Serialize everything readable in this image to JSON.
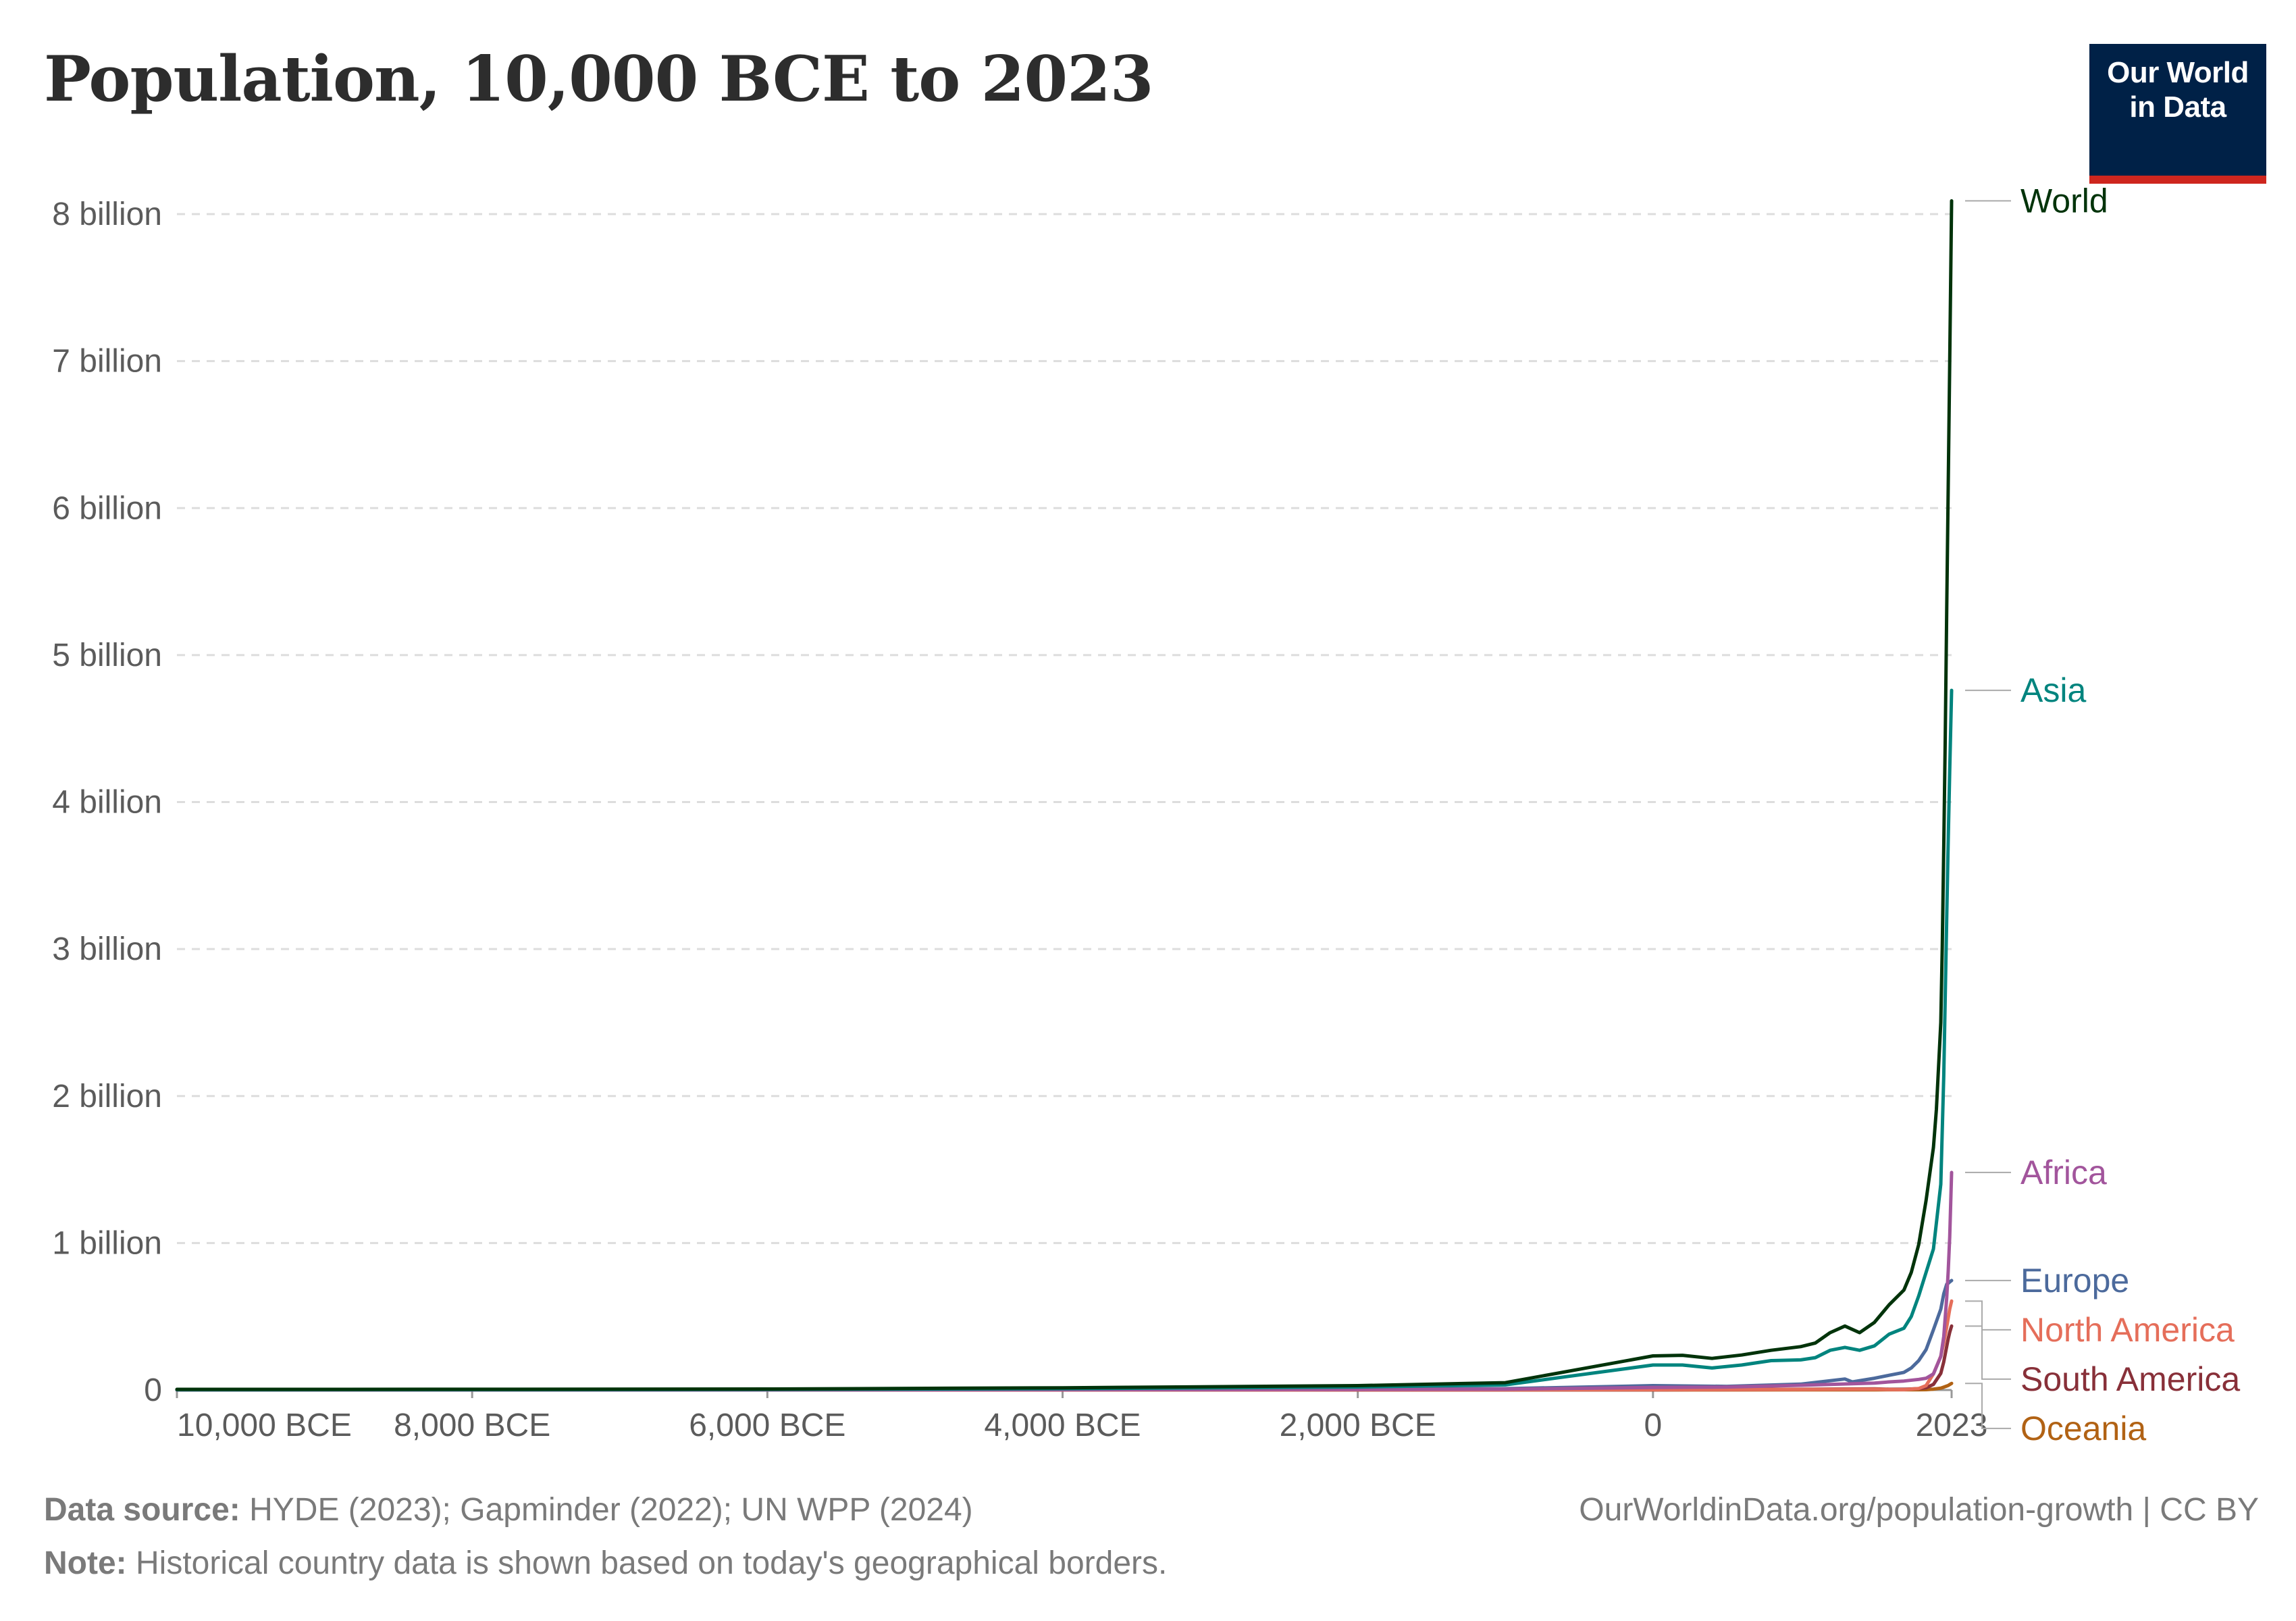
{
  "header": {
    "title": "Population, 10,000 BCE to 2023"
  },
  "logo": {
    "line1": "Our World",
    "line2": "in Data",
    "colors": {
      "background": "#002147",
      "accent": "#ce261e"
    }
  },
  "footer": {
    "source_label": "Data source:",
    "source_text": "HYDE (2023); Gapminder (2022); UN WPP (2024)",
    "url": "OurWorldinData.org/population-growth | CC BY",
    "note_label": "Note:",
    "note_text": "Historical country data is shown based on today's geographical borders."
  },
  "chart_data": {
    "type": "line",
    "xlim": [
      -10000,
      2023
    ],
    "ylim": [
      0,
      8000000000
    ],
    "grid": "horizontal dashed",
    "y_ticks": [
      {
        "value": 0,
        "label": "0"
      },
      {
        "value": 1000000000,
        "label": "1 billion"
      },
      {
        "value": 2000000000,
        "label": "2 billion"
      },
      {
        "value": 3000000000,
        "label": "3 billion"
      },
      {
        "value": 4000000000,
        "label": "4 billion"
      },
      {
        "value": 5000000000,
        "label": "5 billion"
      },
      {
        "value": 6000000000,
        "label": "6 billion"
      },
      {
        "value": 7000000000,
        "label": "7 billion"
      },
      {
        "value": 8000000000,
        "label": "8 billion"
      }
    ],
    "x_ticks": [
      {
        "value": -10000,
        "label": "10,000 BCE"
      },
      {
        "value": -8000,
        "label": "8,000 BCE"
      },
      {
        "value": -6000,
        "label": "6,000 BCE"
      },
      {
        "value": -4000,
        "label": "4,000 BCE"
      },
      {
        "value": -2000,
        "label": "2,000 BCE"
      },
      {
        "value": 0,
        "label": "0"
      },
      {
        "value": 2023,
        "label": "2023"
      }
    ],
    "series": [
      {
        "name": "World",
        "color": "#00330a",
        "points": [
          [
            -10000,
            4400000
          ],
          [
            -8000,
            5000000
          ],
          [
            -6000,
            7000000
          ],
          [
            -4000,
            15000000
          ],
          [
            -2000,
            30000000
          ],
          [
            -1000,
            50000000
          ],
          [
            0,
            232000000
          ],
          [
            200,
            236000000
          ],
          [
            400,
            215000000
          ],
          [
            600,
            238000000
          ],
          [
            800,
            270000000
          ],
          [
            1000,
            295000000
          ],
          [
            1100,
            320000000
          ],
          [
            1200,
            390000000
          ],
          [
            1300,
            435000000
          ],
          [
            1400,
            390000000
          ],
          [
            1500,
            460000000
          ],
          [
            1600,
            580000000
          ],
          [
            1700,
            680000000
          ],
          [
            1750,
            800000000
          ],
          [
            1800,
            990000000
          ],
          [
            1850,
            1290000000
          ],
          [
            1900,
            1650000000
          ],
          [
            1920,
            1910000000
          ],
          [
            1950,
            2500000000
          ],
          [
            1960,
            3020000000
          ],
          [
            1970,
            3700000000
          ],
          [
            1980,
            4440000000
          ],
          [
            1990,
            5320000000
          ],
          [
            2000,
            6150000000
          ],
          [
            2010,
            6990000000
          ],
          [
            2023,
            8090000000
          ]
        ]
      },
      {
        "name": "Asia",
        "color": "#00847e",
        "points": [
          [
            -10000,
            2000000
          ],
          [
            -8000,
            2500000
          ],
          [
            -6000,
            4000000
          ],
          [
            -4000,
            9000000
          ],
          [
            -2000,
            20000000
          ],
          [
            -1000,
            35000000
          ],
          [
            0,
            170000000
          ],
          [
            200,
            170000000
          ],
          [
            400,
            150000000
          ],
          [
            600,
            170000000
          ],
          [
            800,
            200000000
          ],
          [
            1000,
            205000000
          ],
          [
            1100,
            220000000
          ],
          [
            1200,
            270000000
          ],
          [
            1300,
            290000000
          ],
          [
            1400,
            270000000
          ],
          [
            1500,
            300000000
          ],
          [
            1600,
            380000000
          ],
          [
            1700,
            420000000
          ],
          [
            1750,
            500000000
          ],
          [
            1800,
            640000000
          ],
          [
            1850,
            800000000
          ],
          [
            1900,
            960000000
          ],
          [
            1950,
            1400000000
          ],
          [
            1970,
            2140000000
          ],
          [
            1990,
            3220000000
          ],
          [
            2000,
            3740000000
          ],
          [
            2010,
            4210000000
          ],
          [
            2023,
            4760000000
          ]
        ]
      },
      {
        "name": "Africa",
        "color": "#a2559c",
        "points": [
          [
            -10000,
            500000
          ],
          [
            -6000,
            1000000
          ],
          [
            -4000,
            2000000
          ],
          [
            -2000,
            4000000
          ],
          [
            -1000,
            6000000
          ],
          [
            0,
            17000000
          ],
          [
            500,
            20000000
          ],
          [
            1000,
            32000000
          ],
          [
            1500,
            47000000
          ],
          [
            1600,
            55000000
          ],
          [
            1700,
            61000000
          ],
          [
            1800,
            72000000
          ],
          [
            1850,
            80000000
          ],
          [
            1900,
            110000000
          ],
          [
            1950,
            228000000
          ],
          [
            1970,
            365000000
          ],
          [
            1990,
            630000000
          ],
          [
            2000,
            810000000
          ],
          [
            2010,
            1040000000
          ],
          [
            2023,
            1480000000
          ]
        ]
      },
      {
        "name": "Europe",
        "color": "#4c6a9c",
        "points": [
          [
            -10000,
            600000
          ],
          [
            -6000,
            1000000
          ],
          [
            -4000,
            2500000
          ],
          [
            -2000,
            5000000
          ],
          [
            -1000,
            9000000
          ],
          [
            0,
            30000000
          ],
          [
            500,
            25000000
          ],
          [
            1000,
            40000000
          ],
          [
            1300,
            75000000
          ],
          [
            1350,
            55000000
          ],
          [
            1500,
            80000000
          ],
          [
            1600,
            100000000
          ],
          [
            1700,
            120000000
          ],
          [
            1750,
            150000000
          ],
          [
            1800,
            200000000
          ],
          [
            1850,
            275000000
          ],
          [
            1900,
            410000000
          ],
          [
            1950,
            550000000
          ],
          [
            1970,
            655000000
          ],
          [
            1990,
            720000000
          ],
          [
            2000,
            726000000
          ],
          [
            2010,
            735000000
          ],
          [
            2023,
            745000000
          ]
        ]
      },
      {
        "name": "North America",
        "color": "#e56e5a",
        "points": [
          [
            -10000,
            100000
          ],
          [
            -4000,
            500000
          ],
          [
            -2000,
            800000
          ],
          [
            0,
            2500000
          ],
          [
            1000,
            4000000
          ],
          [
            1500,
            5500000
          ],
          [
            1600,
            3000000
          ],
          [
            1700,
            2500000
          ],
          [
            1800,
            10000000
          ],
          [
            1850,
            30000000
          ],
          [
            1900,
            110000000
          ],
          [
            1950,
            230000000
          ],
          [
            1970,
            320000000
          ],
          [
            1990,
            430000000
          ],
          [
            2000,
            490000000
          ],
          [
            2010,
            550000000
          ],
          [
            2023,
            605000000
          ]
        ]
      },
      {
        "name": "South America",
        "color": "#883039",
        "points": [
          [
            -10000,
            100000
          ],
          [
            -4000,
            300000
          ],
          [
            -2000,
            600000
          ],
          [
            0,
            1500000
          ],
          [
            1000,
            5000000
          ],
          [
            1500,
            8000000
          ],
          [
            1600,
            5000000
          ],
          [
            1700,
            5000000
          ],
          [
            1800,
            9000000
          ],
          [
            1850,
            15000000
          ],
          [
            1900,
            38000000
          ],
          [
            1950,
            113000000
          ],
          [
            1970,
            192000000
          ],
          [
            1990,
            297000000
          ],
          [
            2000,
            349000000
          ],
          [
            2010,
            393000000
          ],
          [
            2023,
            435000000
          ]
        ]
      },
      {
        "name": "Oceania",
        "color": "#b16214",
        "points": [
          [
            -10000,
            100000
          ],
          [
            0,
            500000
          ],
          [
            1000,
            900000
          ],
          [
            1500,
            1200000
          ],
          [
            1800,
            2000000
          ],
          [
            1850,
            2500000
          ],
          [
            1900,
            6000000
          ],
          [
            1950,
            12700000
          ],
          [
            1970,
            19700000
          ],
          [
            1990,
            27000000
          ],
          [
            2000,
            31000000
          ],
          [
            2010,
            37000000
          ],
          [
            2023,
            45000000
          ]
        ]
      }
    ]
  }
}
